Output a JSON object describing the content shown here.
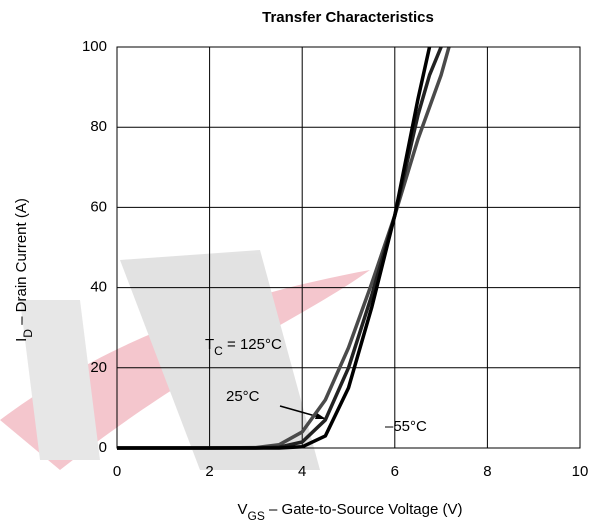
{
  "chart_data": {
    "type": "line",
    "title": "Transfer Characteristics",
    "x_label": {
      "main": "V",
      "sub": "GS",
      "rest": " – Gate-to-Source Voltage (V)"
    },
    "y_label": {
      "main": "I",
      "sub": "D",
      "rest": " – Drain Current (A)"
    },
    "x": [
      0,
      2,
      3,
      3.5,
      4,
      4.5,
      5,
      5.5,
      6,
      6.5,
      6.75,
      7,
      7.17
    ],
    "series": [
      {
        "name": {
          "main": "T",
          "sub": "C",
          "rest": " = 125°C"
        },
        "color": "#4a4a4a",
        "values": [
          0,
          0,
          0.1,
          0.8,
          4,
          12,
          25,
          41,
          58,
          77,
          85,
          93,
          100
        ]
      },
      {
        "name": "25°C",
        "color": "#222222",
        "values": [
          0,
          0,
          0,
          0.2,
          1.5,
          7,
          20,
          38,
          58,
          83,
          93,
          100,
          null
        ]
      },
      {
        "name": "–55°C",
        "color": "#000000",
        "values": [
          0,
          0,
          0,
          0,
          0.3,
          3,
          15,
          35,
          58,
          87,
          100,
          null,
          null
        ]
      }
    ],
    "xlim": [
      0,
      10
    ],
    "xticks": [
      0,
      2,
      4,
      6,
      8,
      10
    ],
    "ylim": [
      0,
      100
    ],
    "yticks": [
      0,
      20,
      40,
      60,
      80,
      100
    ],
    "grid": true
  }
}
